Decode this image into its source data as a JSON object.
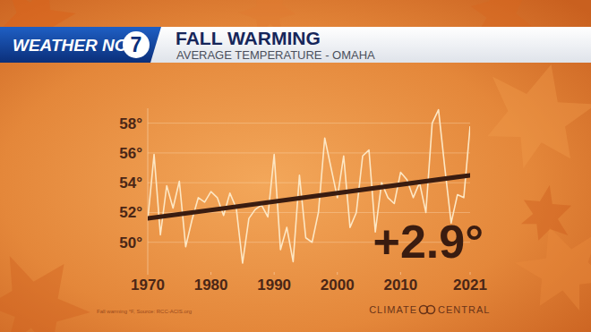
{
  "chart_data": {
    "type": "line",
    "header": {
      "brand": "WEATHER NOW",
      "channel": "7"
    },
    "title": "FALL WARMING",
    "subtitle": "AVERAGE TEMPERATURE - OMAHA",
    "x": [
      1970,
      1971,
      1972,
      1973,
      1974,
      1975,
      1976,
      1977,
      1978,
      1979,
      1980,
      1981,
      1982,
      1983,
      1984,
      1985,
      1986,
      1987,
      1988,
      1989,
      1990,
      1991,
      1992,
      1993,
      1994,
      1995,
      1996,
      1997,
      1998,
      1999,
      2000,
      2001,
      2002,
      2003,
      2004,
      2005,
      2006,
      2007,
      2008,
      2009,
      2010,
      2011,
      2012,
      2013,
      2014,
      2015,
      2016,
      2017,
      2018,
      2019,
      2020,
      2021
    ],
    "series": [
      {
        "color": "#fde7c4",
        "values": [
          51.5,
          55.9,
          50.5,
          53.8,
          52.3,
          54.1,
          49.7,
          51.5,
          53.0,
          52.7,
          53.4,
          53.0,
          51.8,
          53.3,
          52.3,
          48.6,
          51.6,
          52.2,
          52.5,
          51.7,
          55.9,
          49.5,
          51.0,
          48.7,
          54.5,
          50.3,
          50.0,
          52.0,
          57.0,
          55.0,
          53.0,
          55.8,
          51.0,
          52.0,
          55.8,
          56.2,
          50.7,
          54.0,
          53.0,
          52.6,
          54.7,
          54.2,
          53.0,
          54.0,
          52.0,
          58.0,
          58.9,
          55.0,
          51.3,
          53.2,
          53.0,
          57.8
        ]
      }
    ],
    "trend": {
      "x": [
        1970,
        2021
      ],
      "values": [
        51.6,
        54.5
      ],
      "color": "#3a1c10"
    },
    "annotation": "+2.9°",
    "xlim": [
      1970,
      2021
    ],
    "xticks": [
      1970,
      1980,
      1990,
      2000,
      2010,
      2021
    ],
    "ylim": [
      48,
      59
    ],
    "yticks": [
      {
        "value": 50,
        "label": "50°"
      },
      {
        "value": 52,
        "label": "52°"
      },
      {
        "value": 54,
        "label": "54°"
      },
      {
        "value": 56,
        "label": "56°"
      },
      {
        "value": 58,
        "label": "58°"
      }
    ],
    "grid": true,
    "source": "Fall warming °F, Source: RCC-ACIS.org",
    "credit": [
      "CLIMATE",
      "CENTRAL"
    ]
  }
}
